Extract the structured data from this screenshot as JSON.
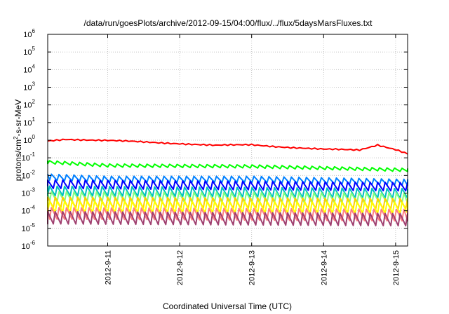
{
  "chart_data": {
    "type": "line",
    "title": "/data/run/goesPlots/archive/2012-09-15/04:00/flux/../flux/5daysMarsFluxes.txt",
    "xlabel": "Coordinated Universal Time (UTC)",
    "ylabel_parts": {
      "pre": "protons/cm",
      "sup": "2",
      "post": "-s-sr-MeV"
    },
    "y_scale": "log",
    "ylim": [
      1e-06,
      1000000.0
    ],
    "y_ticks": [
      {
        "base": "10",
        "exp": "-6",
        "value": 1e-06
      },
      {
        "base": "10",
        "exp": "-5",
        "value": 1e-05
      },
      {
        "base": "10",
        "exp": "-4",
        "value": 0.0001
      },
      {
        "base": "10",
        "exp": "-3",
        "value": 0.001
      },
      {
        "base": "10",
        "exp": "-2",
        "value": 0.01
      },
      {
        "base": "10",
        "exp": "-1",
        "value": 0.1
      },
      {
        "base": "10",
        "exp": "0",
        "value": 1
      },
      {
        "base": "10",
        "exp": "1",
        "value": 10.0
      },
      {
        "base": "10",
        "exp": "2",
        "value": 100.0
      },
      {
        "base": "10",
        "exp": "3",
        "value": 1000.0
      },
      {
        "base": "10",
        "exp": "4",
        "value": 10000.0
      },
      {
        "base": "10",
        "exp": "5",
        "value": 100000.0
      },
      {
        "base": "10",
        "exp": "6",
        "value": 1000000.0
      }
    ],
    "xlim": [
      "2012-09-10T04:00",
      "2012-09-15T04:00"
    ],
    "x_ticks": [
      {
        "label": "2012-9-11",
        "value": "2012-09-11T00:00"
      },
      {
        "label": "2012-9-12",
        "value": "2012-09-12T00:00"
      },
      {
        "label": "2012-9-13",
        "value": "2012-09-13T00:00"
      },
      {
        "label": "2012-9-14",
        "value": "2012-09-14T00:00"
      },
      {
        "label": "2012-9-15",
        "value": "2012-09-15T00:00"
      }
    ],
    "grid": true,
    "series": [
      {
        "color": "#ff0000",
        "mode": "smooth",
        "anchors": [
          [
            "2012-09-10T04:00",
            0.9
          ],
          [
            "2012-09-10T10:00",
            1.15
          ],
          [
            "2012-09-11T00:00",
            0.95
          ],
          [
            "2012-09-12T00:00",
            0.65
          ],
          [
            "2012-09-12T12:00",
            0.5
          ],
          [
            "2012-09-13T00:00",
            0.55
          ],
          [
            "2012-09-13T12:00",
            0.4
          ],
          [
            "2012-09-14T00:00",
            0.3
          ],
          [
            "2012-09-14T12:00",
            0.28
          ],
          [
            "2012-09-14T18:00",
            0.55
          ],
          [
            "2012-09-15T00:00",
            0.3
          ],
          [
            "2012-09-15T04:00",
            0.17
          ]
        ]
      },
      {
        "color": "#00ff00",
        "mode": "sawtooth",
        "anchors": [
          [
            "2012-09-10T04:00",
            0.07
          ],
          [
            "2012-09-11T00:00",
            0.045
          ],
          [
            "2012-09-13T00:00",
            0.04
          ],
          [
            "2012-09-15T04:00",
            0.025
          ]
        ],
        "amp": 1.5
      },
      {
        "color": "#0080ff",
        "mode": "sawtooth",
        "anchors": [
          [
            "2012-09-10T04:00",
            0.012
          ],
          [
            "2012-09-11T00:00",
            0.009
          ],
          [
            "2012-09-13T00:00",
            0.009
          ],
          [
            "2012-09-15T04:00",
            0.006
          ]
        ],
        "amp": 2.2
      },
      {
        "color": "#0000ff",
        "mode": "sawtooth",
        "anchors": [
          [
            "2012-09-10T04:00",
            0.0055
          ],
          [
            "2012-09-15T04:00",
            0.004
          ]
        ],
        "amp": 3.0
      },
      {
        "color": "#00c0c0",
        "mode": "sawtooth",
        "anchors": [
          [
            "2012-09-10T04:00",
            0.0025
          ],
          [
            "2012-09-15T04:00",
            0.0018
          ]
        ],
        "amp": 3.5
      },
      {
        "color": "#80ff80",
        "mode": "sawtooth",
        "anchors": [
          [
            "2012-09-10T04:00",
            0.0012
          ],
          [
            "2012-09-15T04:00",
            0.001
          ]
        ],
        "amp": 3.8
      },
      {
        "color": "#ffd000",
        "mode": "sawtooth",
        "anchors": [
          [
            "2012-09-10T04:00",
            0.0006
          ],
          [
            "2012-09-15T04:00",
            0.0005
          ]
        ],
        "amp": 4.0
      },
      {
        "color": "#ffff00",
        "mode": "sawtooth",
        "anchors": [
          [
            "2012-09-10T04:00",
            0.00035
          ],
          [
            "2012-09-15T04:00",
            0.0003
          ]
        ],
        "amp": 4.2
      },
      {
        "color": "#ff8080",
        "mode": "sawtooth",
        "anchors": [
          [
            "2012-09-10T04:00",
            0.00015
          ],
          [
            "2012-09-15T04:00",
            0.00012
          ]
        ],
        "amp": 4.5
      },
      {
        "color": "#a04070",
        "mode": "sawtooth",
        "anchors": [
          [
            "2012-09-10T04:00",
            9e-05
          ],
          [
            "2012-09-15T04:00",
            7e-05
          ]
        ],
        "amp": 5.0
      }
    ]
  }
}
